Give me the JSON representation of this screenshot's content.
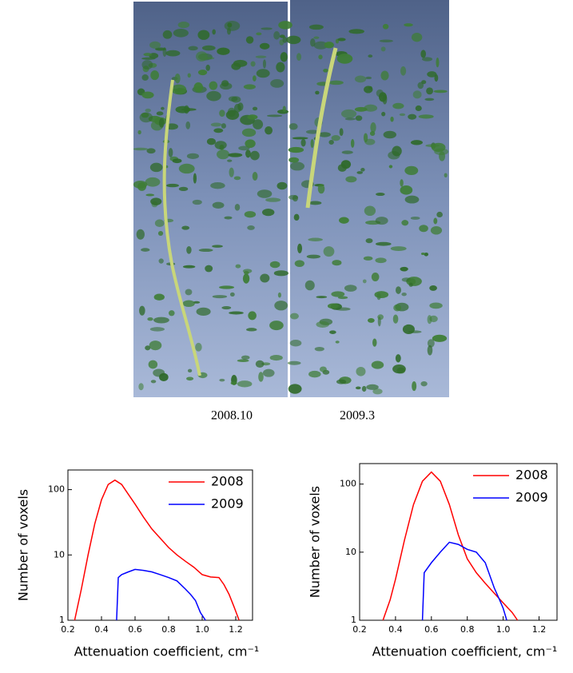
{
  "images": {
    "captions": [
      "2008.10",
      "2009.3"
    ]
  },
  "chart_data": [
    {
      "type": "line",
      "xlabel": "Attenuation coefficient, cm⁻¹",
      "ylabel": "Number of voxels",
      "xlim": [
        0.2,
        1.3
      ],
      "xticks": [
        0.2,
        0.4,
        0.6,
        0.8,
        {
          "value": 1,
          "label": "1.0"
        },
        1.2
      ],
      "ylim": [
        1,
        200
      ],
      "yticks": [
        1,
        10,
        100
      ],
      "yscale": "log",
      "legend": "upper right",
      "series": [
        {
          "name": "2008",
          "color": "#ff0000",
          "x": [
            0.24,
            0.28,
            0.32,
            0.36,
            0.4,
            0.44,
            0.48,
            0.52,
            0.56,
            0.6,
            0.65,
            0.7,
            0.75,
            0.8,
            0.85,
            0.9,
            0.95,
            1.0,
            1.05,
            1.1,
            1.13,
            1.16,
            1.19,
            1.22
          ],
          "values": [
            1,
            3,
            10,
            30,
            70,
            120,
            140,
            120,
            85,
            60,
            38,
            25,
            18,
            13,
            10,
            8,
            6.5,
            5,
            4.6,
            4.5,
            3.5,
            2.5,
            1.6,
            1
          ]
        },
        {
          "name": "2009",
          "color": "#0000ff",
          "x": [
            0.49,
            0.5,
            0.52,
            0.56,
            0.6,
            0.65,
            0.7,
            0.75,
            0.8,
            0.85,
            0.9,
            0.93,
            0.96,
            0.99,
            1.02
          ],
          "values": [
            1,
            4.5,
            5,
            5.5,
            6,
            5.8,
            5.5,
            5,
            4.5,
            4,
            3,
            2.5,
            2,
            1.3,
            1
          ]
        }
      ]
    },
    {
      "type": "line",
      "xlabel": "Attenuation coefficient, cm⁻¹",
      "ylabel": "Number of voxels",
      "xlim": [
        0.2,
        1.3
      ],
      "xticks": [
        0.2,
        0.4,
        0.6,
        0.8,
        {
          "value": 1,
          "label": "1.0"
        },
        1.2
      ],
      "ylim": [
        1,
        200
      ],
      "yticks": [
        1,
        10,
        100
      ],
      "yscale": "log",
      "legend": "upper right",
      "series": [
        {
          "name": "2008",
          "color": "#ff0000",
          "x": [
            0.33,
            0.37,
            0.4,
            0.45,
            0.5,
            0.55,
            0.6,
            0.65,
            0.7,
            0.75,
            0.8,
            0.85,
            0.9,
            0.95,
            1.0,
            1.05,
            1.08
          ],
          "values": [
            1,
            2,
            4,
            15,
            50,
            110,
            150,
            110,
            50,
            18,
            8,
            5,
            3.5,
            2.5,
            1.8,
            1.3,
            1
          ]
        },
        {
          "name": "2009",
          "color": "#0000ff",
          "x": [
            0.55,
            0.56,
            0.6,
            0.65,
            0.7,
            0.75,
            0.8,
            0.85,
            0.9,
            0.95,
            0.98,
            1.0,
            1.02
          ],
          "values": [
            1,
            5,
            7,
            10,
            14,
            13,
            11,
            10,
            7,
            3,
            2,
            1.5,
            1
          ]
        }
      ]
    }
  ]
}
